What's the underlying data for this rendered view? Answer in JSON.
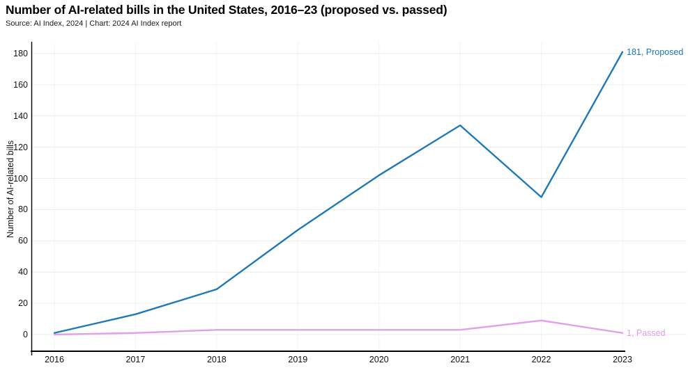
{
  "header": {
    "title": "Number of AI-related bills in the United States, 2016–23 (proposed vs. passed)",
    "source_line": "Source: AI Index, 2024 | Chart: 2024 AI Index report"
  },
  "chart_data": {
    "type": "line",
    "title": "Number of AI-related bills in the United States, 2016–23 (proposed vs. passed)",
    "x": [
      2016,
      2017,
      2018,
      2019,
      2020,
      2021,
      2022,
      2023
    ],
    "series": [
      {
        "name": "Passed",
        "values": [
          0,
          1,
          3,
          3,
          3,
          3,
          9,
          1
        ],
        "color": "#e1a0e9",
        "end_label": "1, Passed"
      },
      {
        "name": "Proposed",
        "values": [
          1,
          13,
          29,
          67,
          102,
          134,
          88,
          181
        ],
        "color": "#1f78b8",
        "end_label": "181, Proposed"
      }
    ],
    "xlabel": "",
    "ylabel": "Number of AI-related bills",
    "yticks": [
      0,
      20,
      40,
      60,
      80,
      100,
      120,
      140,
      160,
      180
    ],
    "ylim": [
      0,
      180
    ],
    "grid": true,
    "legend_position": "line-end-labels",
    "axis_color": "#000000",
    "h_grid_color": "#ececec",
    "v_grid_color": "#f4f4f4"
  }
}
